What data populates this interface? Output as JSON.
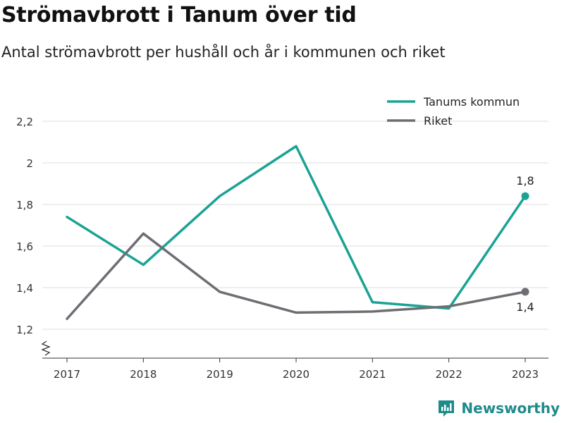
{
  "title": "Strömavbrott i Tanum över tid",
  "subtitle": "Antal strömavbrott per hushåll och år i kommunen och riket",
  "brand": {
    "name": "Newsworthy",
    "icon": "newsworthy-logo-icon"
  },
  "chart_data": {
    "type": "line",
    "categories": [
      "2017",
      "2018",
      "2019",
      "2020",
      "2021",
      "2022",
      "2023"
    ],
    "series": [
      {
        "name": "Tanums kommun",
        "color": "#1aa394",
        "values": [
          1.74,
          1.51,
          1.84,
          2.08,
          1.33,
          1.3,
          1.84
        ],
        "end_label": "1,8"
      },
      {
        "name": "Riket",
        "color": "#6e6d73",
        "values": [
          1.25,
          1.66,
          1.38,
          1.28,
          1.285,
          1.31,
          1.38
        ],
        "end_label": "1,4"
      }
    ],
    "ylim": [
      1.15,
      2.3
    ],
    "yticks": [
      1.2,
      1.4,
      1.6,
      1.8,
      2.0,
      2.2
    ],
    "ytick_labels": [
      "1,2",
      "1,4",
      "1,6",
      "1,8",
      "2",
      "2,2"
    ],
    "grid": true,
    "legend": "top-right",
    "axis_break": true,
    "xlabel": "",
    "ylabel": ""
  }
}
